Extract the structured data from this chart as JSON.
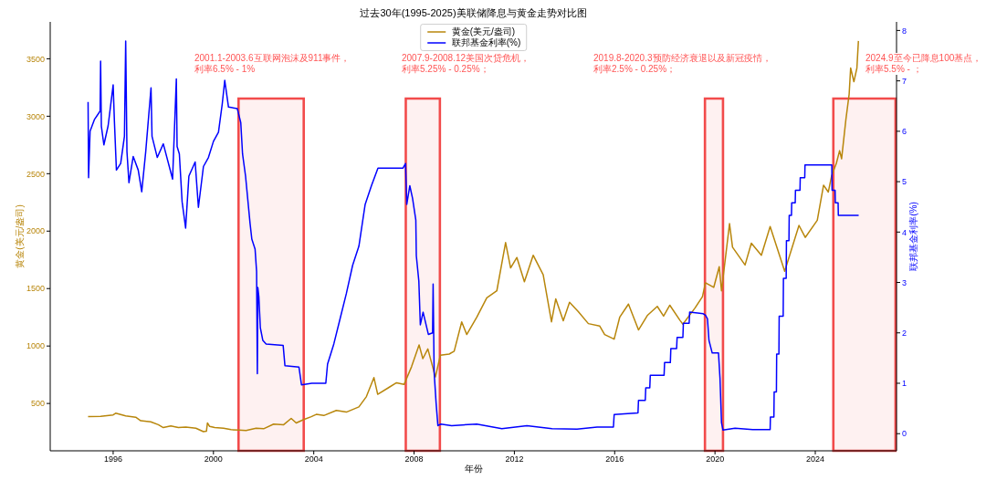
{
  "chart_data": {
    "type": "line",
    "title": "过去30年(1995-2025)美联储降息与黄金走势对比图",
    "xlabel": "年份",
    "ylabel": "黄金(美元/盎司)",
    "y2label": "联邦基金利率(%)",
    "xlim": [
      1993.49,
      2027.24
    ],
    "xticks": [
      1996,
      2000,
      2004,
      2008,
      2012,
      2016,
      2020,
      2024
    ],
    "ylim": [
      88,
      3821
    ],
    "yticks": [
      500,
      1000,
      1500,
      2000,
      2500,
      3000,
      3500
    ],
    "y2lim": [
      -0.34,
      8.17
    ],
    "y2ticks": [
      0,
      1,
      2,
      3,
      4,
      5,
      6,
      7,
      8
    ],
    "legend": "top",
    "series": [
      {
        "name": "黄金(美元/盎司)",
        "color": "#b8860b",
        "x": [
          1995.0,
          1995.5,
          1996.0,
          1996.1,
          1996.5,
          1996.9,
          1997.1,
          1997.5,
          1997.8,
          1998.0,
          1998.3,
          1998.6,
          1998.9,
          1999.3,
          1999.6,
          1999.72,
          1999.76,
          1999.85,
          2000.05,
          2000.4,
          2000.7,
          2001.0,
          2001.3,
          2001.7,
          2002.0,
          2002.4,
          2002.8,
          2003.1,
          2003.3,
          2003.6,
          2003.9,
          2004.1,
          2004.4,
          2004.9,
          2005.3,
          2005.8,
          2006.1,
          2006.4,
          2006.55,
          2007.0,
          2007.3,
          2007.6,
          2007.9,
          2008.2,
          2008.35,
          2008.55,
          2008.85,
          2009.05,
          2009.4,
          2009.6,
          2009.9,
          2010.1,
          2010.5,
          2010.9,
          2011.3,
          2011.65,
          2011.85,
          2012.1,
          2012.4,
          2012.75,
          2013.15,
          2013.48,
          2013.65,
          2013.95,
          2014.2,
          2014.55,
          2014.95,
          2015.4,
          2015.6,
          2015.98,
          2016.2,
          2016.55,
          2016.95,
          2017.3,
          2017.7,
          2017.95,
          2018.2,
          2018.6,
          2018.72,
          2019.2,
          2019.5,
          2019.62,
          2019.95,
          2020.17,
          2020.26,
          2020.58,
          2020.7,
          2021.2,
          2021.45,
          2021.85,
          2022.2,
          2022.78,
          2023.35,
          2023.6,
          2024.08,
          2024.33,
          2024.52,
          2024.65,
          2024.84,
          2024.97,
          2025.05,
          2025.22,
          2025.35,
          2025.41,
          2025.54,
          2025.66,
          2025.72
        ],
        "values": [
          385,
          388,
          400,
          415,
          392,
          380,
          350,
          340,
          315,
          290,
          305,
          290,
          295,
          285,
          255,
          258,
          330,
          300,
          290,
          285,
          272,
          268,
          265,
          285,
          280,
          320,
          315,
          370,
          330,
          360,
          385,
          405,
          395,
          440,
          425,
          470,
          560,
          725,
          580,
          640,
          680,
          665,
          820,
          1010,
          890,
          975,
          730,
          920,
          930,
          955,
          1210,
          1100,
          1250,
          1420,
          1480,
          1900,
          1680,
          1770,
          1560,
          1790,
          1620,
          1210,
          1410,
          1220,
          1380,
          1300,
          1195,
          1175,
          1100,
          1060,
          1250,
          1365,
          1140,
          1265,
          1345,
          1260,
          1355,
          1225,
          1190,
          1330,
          1430,
          1550,
          1510,
          1690,
          1480,
          2065,
          1860,
          1705,
          1895,
          1790,
          2040,
          1650,
          2050,
          1945,
          2095,
          2400,
          2340,
          2480,
          2590,
          2700,
          2630,
          2970,
          3190,
          3420,
          3300,
          3420,
          3655
        ]
      },
      {
        "name": "联邦基金利率(%)",
        "color": "#0000ff",
        "axis": "y2",
        "x": [
          1995.0,
          1995.02,
          1995.08,
          1995.25,
          1995.48,
          1995.5,
          1995.53,
          1995.63,
          1995.8,
          1996.0,
          1996.05,
          1996.13,
          1996.3,
          1996.45,
          1996.5,
          1996.55,
          1996.63,
          1996.8,
          1997.0,
          1997.14,
          1997.3,
          1997.51,
          1997.55,
          1997.76,
          1998.0,
          1998.37,
          1998.52,
          1998.55,
          1998.64,
          1998.75,
          1998.89,
          1999.02,
          1999.27,
          1999.4,
          1999.6,
          1999.8,
          2000.0,
          2000.2,
          2000.35,
          2000.45,
          2000.6,
          2000.95,
          2001.09,
          2001.16,
          2001.28,
          2001.46,
          2001.53,
          2001.66,
          2001.72,
          2001.75,
          2001.77,
          2001.81,
          2001.87,
          2001.97,
          2002.1,
          2002.78,
          2002.85,
          2003.41,
          2003.51,
          2003.92,
          2004.48,
          2004.55,
          2004.8,
          2005.05,
          2005.3,
          2005.55,
          2005.8,
          2006.05,
          2006.3,
          2006.56,
          2007.56,
          2007.66,
          2007.71,
          2007.83,
          2007.94,
          2008.07,
          2008.09,
          2008.19,
          2008.25,
          2008.36,
          2008.57,
          2008.74,
          2008.76,
          2008.8,
          2008.88,
          2008.95,
          2009.07,
          2009.5,
          2010.5,
          2011.5,
          2012.5,
          2013.5,
          2014.5,
          2015.3,
          2015.95,
          2015.98,
          2016.93,
          2016.95,
          2017.22,
          2017.24,
          2017.4,
          2017.42,
          2017.97,
          2017.99,
          2018.22,
          2018.24,
          2018.47,
          2018.49,
          2018.72,
          2018.74,
          2018.97,
          2018.99,
          2019.53,
          2019.62,
          2019.7,
          2019.76,
          2019.89,
          2020.14,
          2020.2,
          2020.26,
          2020.32,
          2020.8,
          2021.5,
          2022.2,
          2022.21,
          2022.35,
          2022.36,
          2022.45,
          2022.46,
          2022.55,
          2022.56,
          2022.72,
          2022.73,
          2022.84,
          2022.85,
          2022.95,
          2022.96,
          2023.05,
          2023.06,
          2023.2,
          2023.21,
          2023.39,
          2023.4,
          2023.58,
          2023.59,
          2024.66,
          2024.67,
          2024.79,
          2024.8,
          2024.91,
          2024.92,
          2025.73
        ],
        "values": [
          6.58,
          5.08,
          6.0,
          6.23,
          6.4,
          7.39,
          6.1,
          5.73,
          6.11,
          6.92,
          6.2,
          5.23,
          5.36,
          5.9,
          7.79,
          5.6,
          4.98,
          5.5,
          5.23,
          4.8,
          5.6,
          6.86,
          5.9,
          5.48,
          5.75,
          5.05,
          7.04,
          5.7,
          5.55,
          4.6,
          4.08,
          5.11,
          5.39,
          4.49,
          5.3,
          5.48,
          5.8,
          5.98,
          6.54,
          7.01,
          6.48,
          6.45,
          6.17,
          5.55,
          5.11,
          4.17,
          3.86,
          3.66,
          3.22,
          1.19,
          2.9,
          2.72,
          2.1,
          1.85,
          1.78,
          1.75,
          1.35,
          1.32,
          0.97,
          1.0,
          1.0,
          1.38,
          1.78,
          2.28,
          2.78,
          3.34,
          3.72,
          4.55,
          4.92,
          5.27,
          5.27,
          5.36,
          4.55,
          4.92,
          4.67,
          4.24,
          3.53,
          3.03,
          2.16,
          2.41,
          1.97,
          2.0,
          2.97,
          1.22,
          0.6,
          0.16,
          0.19,
          0.16,
          0.19,
          0.1,
          0.16,
          0.1,
          0.09,
          0.13,
          0.13,
          0.38,
          0.41,
          0.66,
          0.66,
          0.91,
          0.91,
          1.16,
          1.16,
          1.41,
          1.41,
          1.69,
          1.69,
          1.91,
          1.91,
          2.19,
          2.19,
          2.41,
          2.38,
          2.35,
          2.28,
          1.85,
          1.6,
          1.6,
          1.1,
          0.22,
          0.07,
          0.11,
          0.08,
          0.08,
          0.33,
          0.33,
          0.83,
          0.83,
          1.58,
          1.58,
          2.33,
          2.33,
          3.08,
          3.08,
          3.83,
          3.83,
          4.33,
          4.33,
          4.58,
          4.58,
          4.83,
          4.83,
          5.08,
          5.08,
          5.33,
          5.33,
          4.83,
          4.83,
          4.58,
          4.58,
          4.33,
          4.33
        ]
      }
    ],
    "bands": [
      {
        "axis": "x",
        "from": 2001.0,
        "to": 2003.6,
        "color": "#f24b4b"
      },
      {
        "axis": "x",
        "from": 2007.67,
        "to": 2009.03,
        "color": "#f24b4b"
      },
      {
        "axis": "x",
        "from": 2019.6,
        "to": 2020.32,
        "color": "#f24b4b"
      },
      {
        "axis": "x",
        "from": 2024.72,
        "to": 2027.2,
        "color": "#f24b4b"
      }
    ],
    "annotations": [
      "2001.1-2003.6互联网泡沫及911事件，利率6.5% - 1%",
      "2007.9-2008.12美国次贷危机，利率5.25% - 0.25%；",
      "2019.8-2020.3预防经济衰退以及新冠疫情，利率2.5% - 0.25%；",
      "2024.9至今已降息100基点，利率5.5% - ；"
    ]
  }
}
